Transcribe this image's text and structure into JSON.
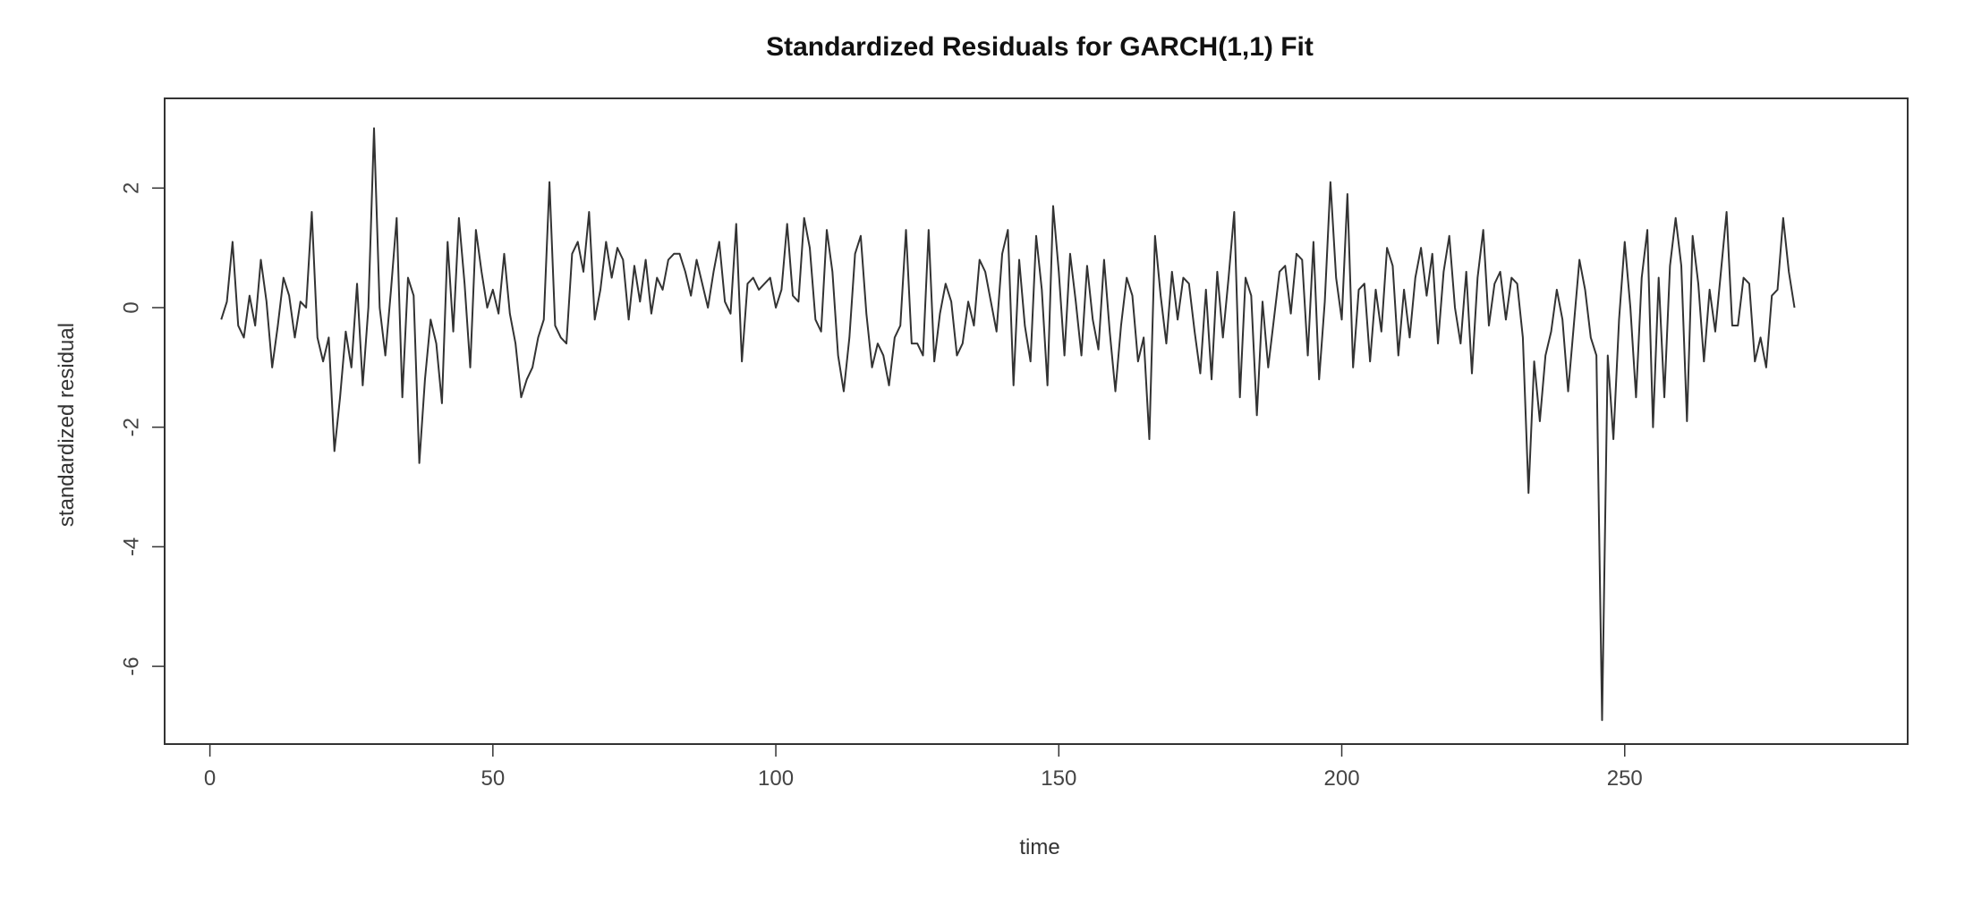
{
  "chart_data": {
    "type": "line",
    "title": "Standardized Residuals for GARCH(1,1) Fit",
    "xlabel": "time",
    "ylabel": "standardized residual",
    "xlim": [
      -8,
      300
    ],
    "ylim": [
      -7.3,
      3.5
    ],
    "x_ticks": [
      0,
      50,
      100,
      150,
      200,
      250
    ],
    "x_tick_labels": [
      "0",
      "50",
      "100",
      "150",
      "200",
      "250"
    ],
    "y_ticks": [
      2,
      0,
      -2,
      -4,
      -6
    ],
    "y_tick_labels": [
      "2",
      "0",
      "-2",
      "-4",
      "-6"
    ],
    "grid": false,
    "legend": "none",
    "line_color": "#333333",
    "series": [
      {
        "name": "standardized residual",
        "x_start": 2,
        "x_step": 1,
        "values": [
          -0.2,
          0.1,
          1.1,
          -0.3,
          -0.5,
          0.2,
          -0.3,
          0.8,
          0.1,
          -1.0,
          -0.3,
          0.5,
          0.2,
          -0.5,
          0.1,
          0.0,
          1.6,
          -0.5,
          -0.9,
          -0.5,
          -2.4,
          -1.5,
          -0.4,
          -1.0,
          0.4,
          -1.3,
          0.0,
          3.0,
          0.0,
          -0.8,
          0.3,
          1.5,
          -1.5,
          0.5,
          0.2,
          -2.6,
          -1.2,
          -0.2,
          -0.6,
          -1.6,
          1.1,
          -0.4,
          1.5,
          0.4,
          -1.0,
          1.3,
          0.6,
          0.0,
          0.3,
          -0.1,
          0.9,
          -0.1,
          -0.6,
          -1.5,
          -1.2,
          -1.0,
          -0.5,
          -0.2,
          2.1,
          -0.3,
          -0.5,
          -0.6,
          0.9,
          1.1,
          0.6,
          1.6,
          -0.2,
          0.3,
          1.1,
          0.5,
          1.0,
          0.8,
          -0.2,
          0.7,
          0.1,
          0.8,
          -0.1,
          0.5,
          0.3,
          0.8,
          0.9,
          0.9,
          0.6,
          0.2,
          0.8,
          0.4,
          0.0,
          0.6,
          1.1,
          0.1,
          -0.1,
          1.4,
          -0.9,
          0.4,
          0.5,
          0.3,
          0.4,
          0.5,
          0.0,
          0.3,
          1.4,
          0.2,
          0.1,
          1.5,
          1.0,
          -0.2,
          -0.4,
          1.3,
          0.6,
          -0.8,
          -1.4,
          -0.5,
          0.9,
          1.2,
          -0.1,
          -1.0,
          -0.6,
          -0.8,
          -1.3,
          -0.5,
          -0.3,
          1.3,
          -0.6,
          -0.6,
          -0.8,
          1.3,
          -0.9,
          -0.1,
          0.4,
          0.1,
          -0.8,
          -0.6,
          0.1,
          -0.3,
          0.8,
          0.6,
          0.1,
          -0.4,
          0.9,
          1.3,
          -1.3,
          0.8,
          -0.3,
          -0.9,
          1.2,
          0.3,
          -1.3,
          1.7,
          0.6,
          -0.8,
          0.9,
          0.1,
          -0.8,
          0.7,
          -0.2,
          -0.7,
          0.8,
          -0.4,
          -1.4,
          -0.3,
          0.5,
          0.2,
          -0.9,
          -0.5,
          -2.2,
          1.2,
          0.2,
          -0.6,
          0.6,
          -0.2,
          0.5,
          0.4,
          -0.4,
          -1.1,
          0.3,
          -1.2,
          0.6,
          -0.5,
          0.5,
          1.6,
          -1.5,
          0.5,
          0.2,
          -1.8,
          0.1,
          -1.0,
          -0.2,
          0.6,
          0.7,
          -0.1,
          0.9,
          0.8,
          -0.8,
          1.1,
          -1.2,
          0.1,
          2.1,
          0.5,
          -0.2,
          1.9,
          -1.0,
          0.3,
          0.4,
          -0.9,
          0.3,
          -0.4,
          1.0,
          0.7,
          -0.8,
          0.3,
          -0.5,
          0.5,
          1.0,
          0.2,
          0.9,
          -0.6,
          0.6,
          1.2,
          0.0,
          -0.6,
          0.6,
          -1.1,
          0.5,
          1.3,
          -0.3,
          0.4,
          0.6,
          -0.2,
          0.5,
          0.4,
          -0.5,
          -3.1,
          -0.9,
          -1.9,
          -0.8,
          -0.4,
          0.3,
          -0.2,
          -1.4,
          -0.3,
          0.8,
          0.3,
          -0.5,
          -0.8,
          -6.9,
          -0.8,
          -2.2,
          -0.2,
          1.1,
          0.0,
          -1.5,
          0.5,
          1.3,
          -2.0,
          0.5,
          -1.5,
          0.7,
          1.5,
          0.7,
          -1.9,
          1.2,
          0.4,
          -0.9,
          0.3,
          -0.4,
          0.6,
          1.6,
          -0.3,
          -0.3,
          0.5,
          0.4,
          -0.9,
          -0.5,
          -1.0,
          0.2,
          0.3,
          1.5,
          0.6,
          0.0
        ]
      }
    ]
  }
}
